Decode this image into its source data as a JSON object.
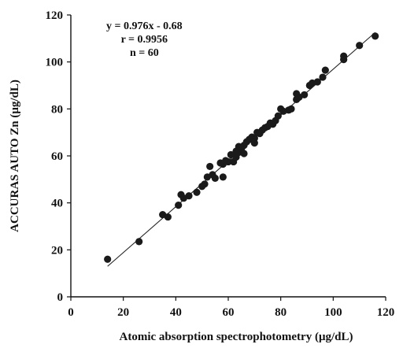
{
  "chart_data": {
    "type": "scatter",
    "title": "",
    "xlabel": "Atomic absorption spectrophotometry (μg/dL)",
    "ylabel": "ACCURAS AUTO Zn (μg/dL)",
    "xlim": [
      0,
      120
    ],
    "ylim": [
      0,
      120
    ],
    "xticks": [
      "0",
      "20",
      "40",
      "60",
      "80",
      "100",
      "120"
    ],
    "yticks": [
      "0",
      "20",
      "40",
      "60",
      "80",
      "100",
      "120"
    ],
    "grid": false,
    "annotations": [
      "y = 0.976x - 0.68",
      "r = 0.9956",
      "n = 60"
    ],
    "regression": {
      "slope": 0.976,
      "intercept": -0.68,
      "x_range": [
        14,
        116
      ]
    },
    "marker_color": "#1a1a1a",
    "series": [
      {
        "values": [
          [
            14,
            16
          ],
          [
            26,
            23.5
          ],
          [
            35,
            35
          ],
          [
            37,
            34
          ],
          [
            41,
            39
          ],
          [
            42,
            43.5
          ],
          [
            45,
            43
          ],
          [
            48,
            44.5
          ],
          [
            50,
            47
          ],
          [
            51,
            48
          ],
          [
            52,
            51
          ],
          [
            53,
            55.5
          ],
          [
            55,
            50.5
          ],
          [
            57,
            57
          ],
          [
            58,
            51
          ],
          [
            58,
            56.5
          ],
          [
            59,
            58
          ],
          [
            60,
            57.5
          ],
          [
            61,
            60.5
          ],
          [
            62,
            57.5
          ],
          [
            63,
            59.5
          ],
          [
            63,
            62
          ],
          [
            64,
            64
          ],
          [
            64,
            61.5
          ],
          [
            65,
            63
          ],
          [
            66,
            64.5
          ],
          [
            67,
            66
          ],
          [
            68,
            67
          ],
          [
            69,
            68
          ],
          [
            70,
            65.5
          ],
          [
            70,
            67.5
          ],
          [
            72,
            69.5
          ],
          [
            73,
            71
          ],
          [
            74,
            72
          ],
          [
            75,
            72.5
          ],
          [
            76,
            74
          ],
          [
            77,
            73.5
          ],
          [
            78,
            75
          ],
          [
            79,
            77
          ],
          [
            80,
            80
          ],
          [
            81,
            79
          ],
          [
            83,
            79.5
          ],
          [
            84,
            80
          ],
          [
            86,
            84
          ],
          [
            86,
            86.5
          ],
          [
            87,
            85
          ],
          [
            89,
            86
          ],
          [
            91,
            90
          ],
          [
            92,
            91
          ],
          [
            94,
            91.5
          ],
          [
            96,
            93.5
          ],
          [
            97,
            96.5
          ],
          [
            104,
            101
          ],
          [
            104,
            102.5
          ],
          [
            110,
            107
          ],
          [
            116,
            111
          ],
          [
            43,
            42
          ],
          [
            54,
            52
          ],
          [
            66,
            61
          ],
          [
            71,
            70
          ]
        ]
      }
    ]
  }
}
